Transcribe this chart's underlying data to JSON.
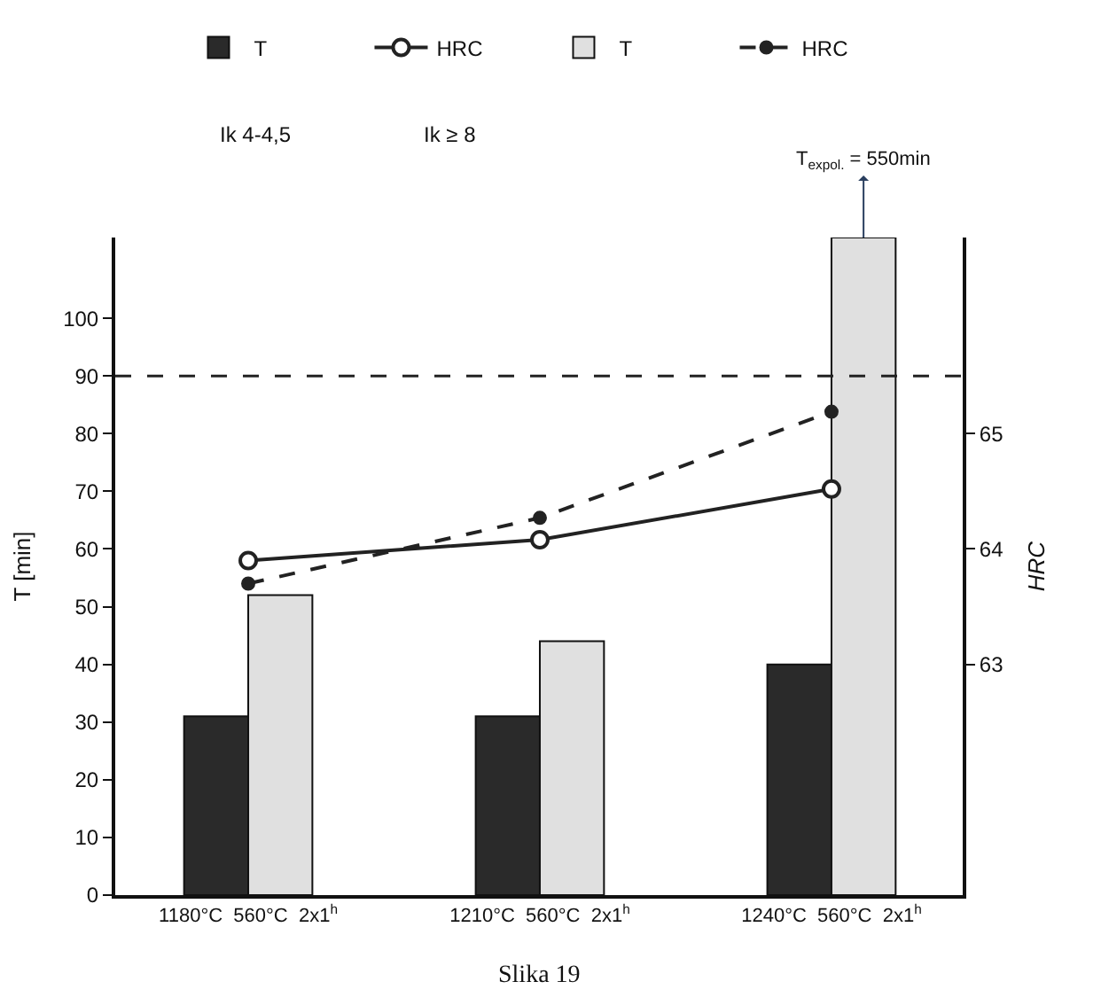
{
  "chart_data": {
    "type": "bar",
    "categories": [
      "1180°C  560°C  2x1$^{h}$",
      "1210°C  560°C  2x1$^{h}$",
      "1240°C  560°C  2x1$^{h}$"
    ],
    "series": [
      {
        "name": "T",
        "color": "#2a2a2a",
        "values": [
          31,
          31,
          40
        ]
      },
      {
        "name": "T",
        "color": "#e0e0e0",
        "values": [
          52,
          44,
          114
        ]
      },
      {
        "name": "HRC",
        "type": "line",
        "axis": "y2",
        "color": "#222222",
        "marker": "circle",
        "line_style": "solid",
        "values": [
          63.9,
          64.08,
          64.52
        ]
      },
      {
        "name": "HRC",
        "type": "line",
        "axis": "y2",
        "color": "#222222",
        "marker": "circle",
        "line_style": "dashed",
        "values": [
          63.7,
          64.27,
          65.19
        ]
      }
    ],
    "ylabel": "T [min]",
    "y2label": "HRC",
    "ylim": [
      0,
      114
    ],
    "yticks": [
      0,
      10,
      20,
      30,
      40,
      50,
      60,
      70,
      80,
      90,
      100
    ],
    "y2lim": [
      61,
      66.7
    ],
    "y2ticks": [
      63,
      64,
      65
    ],
    "ref_lines": [
      {
        "axis": "y",
        "value": 90,
        "label": null,
        "color": "#222222",
        "line_style": "dashed"
      }
    ],
    "annotations": [
      "Ik 4-4,5",
      "Ik ≥ 8",
      "T$_{expol.}$ = 550min",
      "Slika 19"
    ],
    "legend": "top"
  }
}
